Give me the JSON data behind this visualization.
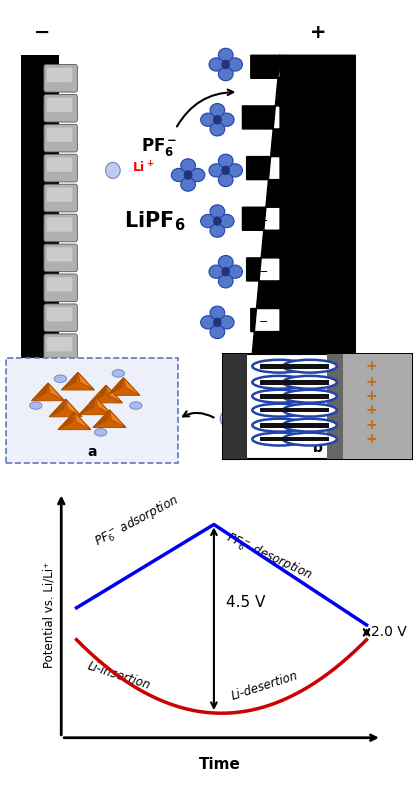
{
  "bg_color": "#ffffff",
  "fig_width": 4.18,
  "fig_height": 7.94,
  "graph": {
    "ylabel": "Potential vs. Li/Li⁺",
    "xlabel": "Time",
    "voltage_45": "4.5 V",
    "voltage_20": "2.0 V",
    "blue_color": "#0000ee",
    "red_color": "#cc0000"
  }
}
